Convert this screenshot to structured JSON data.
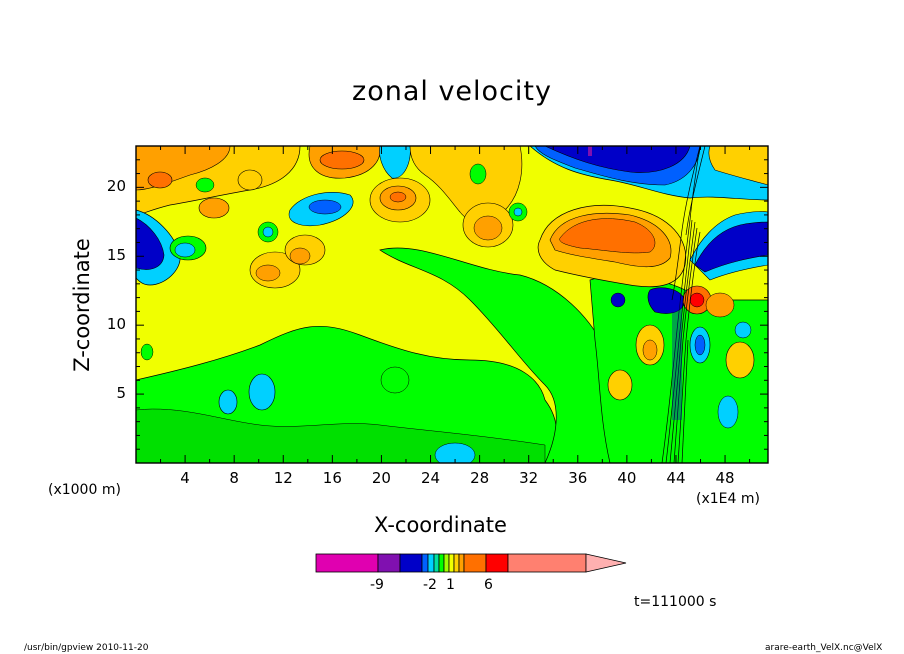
{
  "chart_data": {
    "type": "heatmap",
    "title": "zonal velocity",
    "xlabel": "X-coordinate",
    "ylabel": "Z-coordinate",
    "x_scale_note": "(x1E4 m)",
    "y_scale_note": "(x1000 m)",
    "x_ticks": [
      "4",
      "8",
      "12",
      "16",
      "20",
      "24",
      "28",
      "32",
      "36",
      "40",
      "44",
      "48"
    ],
    "y_ticks": [
      "5",
      "10",
      "15",
      "20"
    ],
    "xlim": [
      0,
      51.5
    ],
    "ylim": [
      0,
      23
    ],
    "colorbar": {
      "labels": [
        "-9",
        "-2",
        "1",
        "6"
      ],
      "colors": [
        "#e000b0",
        "#8010b0",
        "#0000c8",
        "#0060ff",
        "#00d0ff",
        "#00e0a0",
        "#00ff00",
        "#a0ff00",
        "#f0ff00",
        "#ffd000",
        "#ffa000",
        "#ff7000",
        "#ff0000",
        "#ff8070",
        "#ffb0b0"
      ]
    },
    "time_label": "t=111000 s"
  },
  "footer": {
    "left": "/usr/bin/gpview  2010-11-20",
    "right": "arare-earth_VelX.nc@VelX"
  }
}
